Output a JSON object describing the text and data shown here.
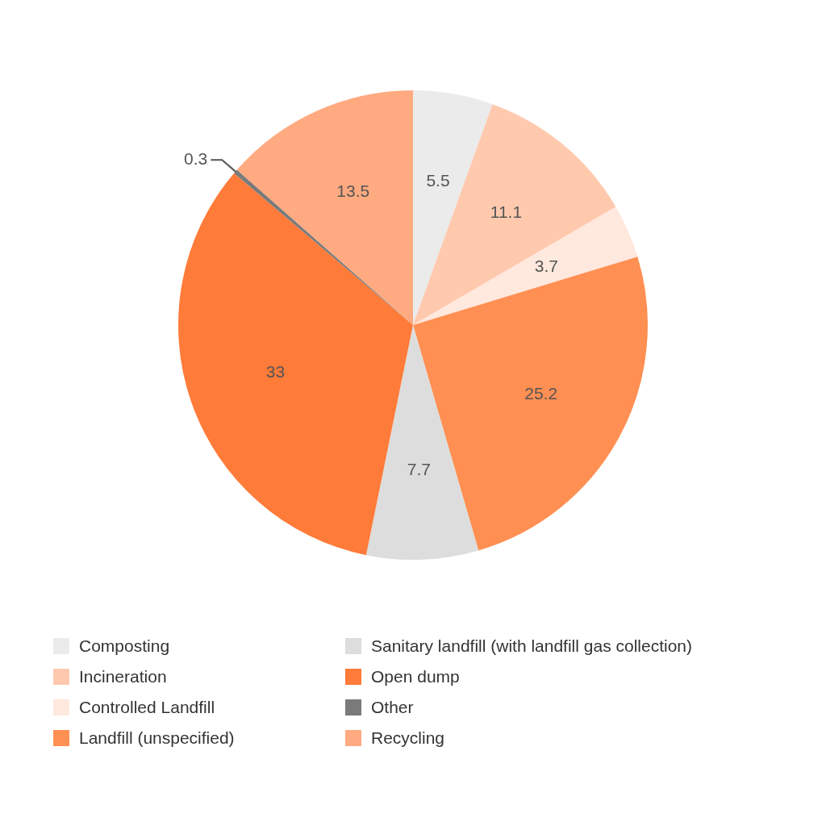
{
  "chart_data": {
    "type": "pie",
    "categories": [
      "Composting",
      "Incineration",
      "Controlled Landfill",
      "Landfill (unspecified)",
      "Sanitary landfill (with landfill gas collection)",
      "Open dump",
      "Other",
      "Recycling"
    ],
    "values": [
      5.5,
      11.1,
      3.7,
      25.2,
      7.7,
      33,
      0.3,
      13.5
    ],
    "colors": [
      "#ebebeb",
      "#ffc9ae",
      "#ffe8dd",
      "#ff8f52",
      "#dcdddc",
      "#ff7b39",
      "#7a7a7a",
      "#ffaa80"
    ],
    "data_labels": true,
    "legend": "bottom"
  }
}
